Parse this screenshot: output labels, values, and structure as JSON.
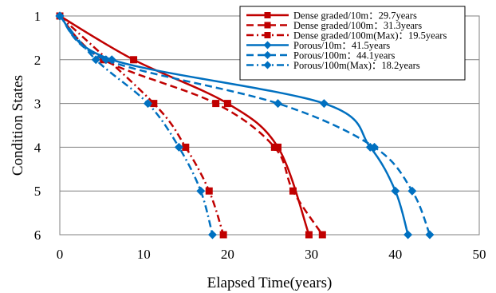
{
  "chart_data": {
    "type": "line",
    "xlabel": "Elapsed Time(years)",
    "ylabel": "Condition States",
    "xlim": [
      0,
      50
    ],
    "ylim": [
      1,
      6
    ],
    "y_inverted": true,
    "xticks": [
      "0",
      "10",
      "20",
      "30",
      "40",
      "50"
    ],
    "yticks": [
      "1",
      "2",
      "3",
      "4",
      "5",
      "6"
    ],
    "grid": "horizontal",
    "legend_position": "top-right",
    "series": [
      {
        "name": "Dense graded/10m：29.7years",
        "color": "#c00000",
        "dash": "solid",
        "marker": "square",
        "x": [
          0,
          8.8,
          20.0,
          26.0,
          29.7
        ],
        "y": [
          1,
          2,
          3,
          4,
          6
        ]
      },
      {
        "name": "Dense graded/100m：31.3years",
        "color": "#c00000",
        "dash": "dashed",
        "marker": "square",
        "x": [
          0,
          5.2,
          18.6,
          25.6,
          27.8,
          31.3
        ],
        "y": [
          1,
          2,
          3,
          4,
          5,
          6
        ]
      },
      {
        "name": "Dense graded/100m(Max)：19.5years",
        "color": "#c00000",
        "dash": "dashdot",
        "marker": "square",
        "x": [
          0,
          11.2,
          15.0,
          17.8,
          19.5
        ],
        "y": [
          1,
          3,
          4,
          5,
          6
        ]
      },
      {
        "name": "Porous/10m：41.5years",
        "color": "#0070c0",
        "dash": "solid",
        "marker": "diamond",
        "x": [
          0,
          6.2,
          31.5,
          37.0,
          40.0,
          41.5
        ],
        "y": [
          1,
          2,
          3,
          4,
          5,
          6
        ]
      },
      {
        "name": "Porous/100m：44.1years",
        "color": "#0070c0",
        "dash": "dashed",
        "marker": "diamond",
        "x": [
          0,
          5.5,
          26.0,
          37.5,
          42.0,
          44.1
        ],
        "y": [
          1,
          2,
          3,
          4,
          5,
          6
        ]
      },
      {
        "name": "Porous/100m(Max)：18.2years",
        "color": "#0070c0",
        "dash": "dashdot",
        "marker": "diamond",
        "x": [
          0,
          4.3,
          10.5,
          14.2,
          16.8,
          18.2
        ],
        "y": [
          1,
          2,
          3,
          4,
          5,
          6
        ]
      }
    ]
  }
}
